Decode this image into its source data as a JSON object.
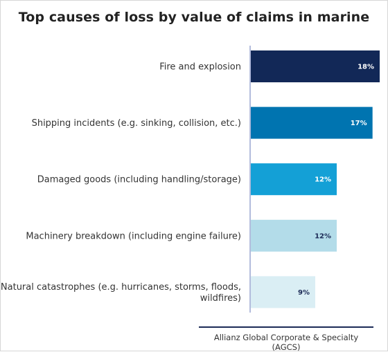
{
  "chart_data": {
    "type": "bar",
    "orientation": "horizontal",
    "title": "Top causes of loss by value of claims in marine",
    "categories": [
      [
        "Fire and explosion"
      ],
      [
        "Shipping incidents (e.g. sinking, collision, etc.)"
      ],
      [
        "Damaged goods (including handling/storage)"
      ],
      [
        "Machinery breakdown (including engine failure)"
      ],
      [
        "Natural catastrophes (e.g. hurricanes, storms, floods,",
        "wildfires)"
      ]
    ],
    "values": [
      18,
      17,
      12,
      12,
      9
    ],
    "value_labels": [
      "18%",
      "17%",
      "12%",
      "12%",
      "9%"
    ],
    "unit": "%",
    "xlim": [
      0,
      18
    ],
    "grid": false,
    "bar_colors": [
      "#122857",
      "#0074b0",
      "#14a0d6",
      "#b3dce9",
      "#daeef4"
    ],
    "label_colors": [
      "#ffffff",
      "#ffffff",
      "#ffffff",
      "#1b2a56",
      "#1b2a56"
    ],
    "axis_color": "#9aa6d0"
  },
  "source": "Allianz Global Corporate & Specialty (AGCS)"
}
